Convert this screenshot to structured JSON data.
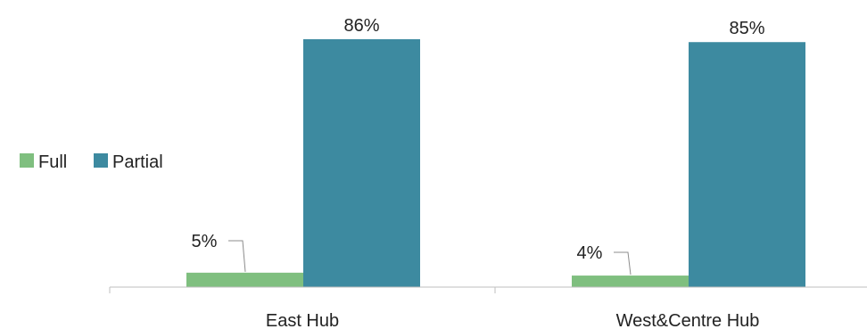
{
  "chart_data": {
    "type": "bar",
    "categories": [
      "East Hub",
      "West&Centre Hub"
    ],
    "series": [
      {
        "name": "Full",
        "values": [
          5,
          4
        ],
        "labels": [
          "5%",
          "4%"
        ],
        "color": "#7FBF7F"
      },
      {
        "name": "Partial",
        "values": [
          86,
          85
        ],
        "labels": [
          "86%",
          "85%"
        ],
        "color": "#3D8AA0"
      }
    ],
    "ylim": [
      0,
      86
    ],
    "grid": false,
    "legend_position": "left",
    "axis_color": "#BFBFBF",
    "leader_line_color": "#8C8C8C"
  }
}
